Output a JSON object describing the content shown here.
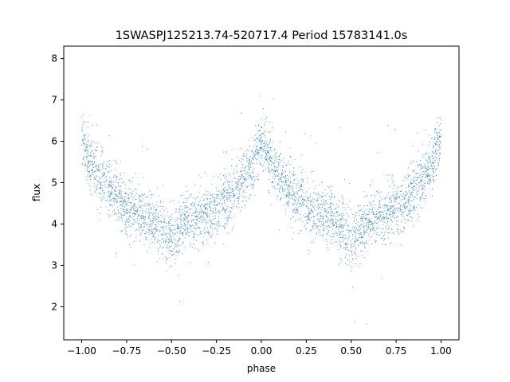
{
  "chart_data": {
    "type": "scatter",
    "title": "1SWASPJ125213.74-520717.4 Period 15783141.0s",
    "xlabel": "phase",
    "ylabel": "flux",
    "xlim": [
      -1.1,
      1.1
    ],
    "ylim": [
      1.2,
      8.3
    ],
    "xticks": [
      -1.0,
      -0.75,
      -0.5,
      -0.25,
      0.0,
      0.25,
      0.5,
      0.75,
      1.0
    ],
    "xtick_labels": [
      "−1.00",
      "−0.75",
      "−0.50",
      "−0.25",
      "0.00",
      "0.25",
      "0.50",
      "0.75",
      "1.00"
    ],
    "yticks": [
      2,
      3,
      4,
      5,
      6,
      7,
      8
    ],
    "ytick_labels": [
      "2",
      "3",
      "4",
      "5",
      "6",
      "7",
      "8"
    ],
    "grid": false,
    "marker_color": "#1f77b4",
    "series": [
      {
        "x": [
          -1.0,
          -0.95,
          -0.9,
          -0.85,
          -0.8,
          -0.75,
          -0.7,
          -0.65,
          -0.6,
          -0.55,
          -0.5,
          -0.45,
          -0.4,
          -0.35,
          -0.3,
          -0.25,
          -0.2,
          -0.15,
          -0.1,
          -0.05,
          0.0,
          0.05,
          0.1,
          0.15,
          0.2,
          0.25,
          0.3,
          0.35,
          0.4,
          0.45,
          0.5,
          0.55,
          0.6,
          0.65,
          0.7,
          0.75,
          0.8,
          0.85,
          0.9,
          0.95,
          1.0
        ],
        "y": [
          6.1,
          5.5,
          5.1,
          4.9,
          4.6,
          4.4,
          4.3,
          4.2,
          4.1,
          3.9,
          3.6,
          3.9,
          4.1,
          4.2,
          4.2,
          4.4,
          4.6,
          4.7,
          5.1,
          5.4,
          6.1,
          5.5,
          5.1,
          4.9,
          4.6,
          4.4,
          4.3,
          4.2,
          4.1,
          3.9,
          3.6,
          3.9,
          4.1,
          4.2,
          4.2,
          4.4,
          4.6,
          4.7,
          5.1,
          5.4,
          6.1
        ]
      }
    ]
  }
}
